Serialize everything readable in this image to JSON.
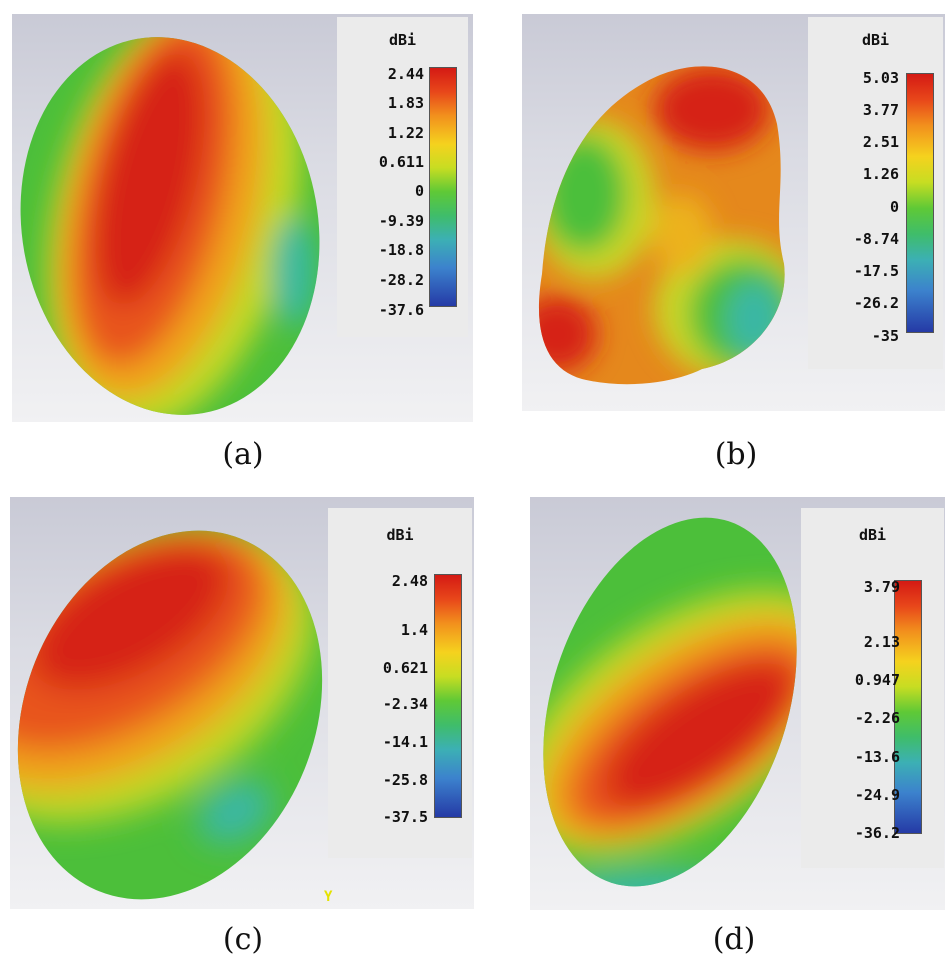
{
  "panels": [
    {
      "id": "a",
      "caption": "(a)",
      "unit": "dBi",
      "ticks": [
        "2.44",
        "1.83",
        "1.22",
        "0.611",
        "0",
        "-9.39",
        "-18.8",
        "-28.2",
        "-37.6"
      ]
    },
    {
      "id": "b",
      "caption": "(b)",
      "unit": "dBi",
      "ticks": [
        "5.03",
        "3.77",
        "2.51",
        "1.26",
        "0",
        "-8.74",
        "-17.5",
        "-26.2",
        "-35"
      ]
    },
    {
      "id": "c",
      "caption": "(c)",
      "unit": "dBi",
      "ticks": [
        "2.48",
        "1.4",
        "0.621",
        "-2.34",
        "-14.1",
        "-25.8",
        "-37.5"
      ]
    },
    {
      "id": "d",
      "caption": "(d)",
      "unit": "dBi",
      "ticks": [
        "3.79",
        "2.13",
        "0.947",
        "-2.26",
        "-13.6",
        "-24.9",
        "-36.2"
      ]
    }
  ],
  "axis_label_c": "Y",
  "colors": {
    "max": "#d41a14",
    "high": "#f2901d",
    "mid": "#f5d21e",
    "zero": "#5fc936",
    "low": "#3cb0b4",
    "min": "#253aa6"
  }
}
